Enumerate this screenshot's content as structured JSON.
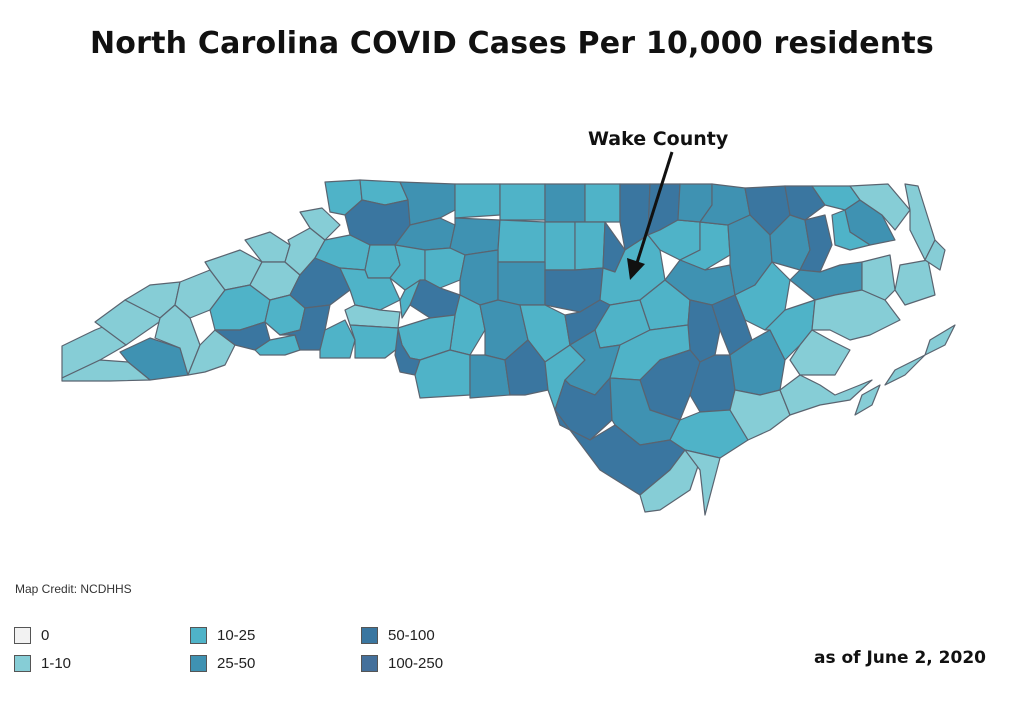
{
  "title": "North Carolina COVID Cases Per 10,000 residents",
  "annotation": "Wake County",
  "credit": "Map Credit: NCDHHS",
  "date_note": "as of June 2, 2020",
  "colors": {
    "c0": "#f2f2f2",
    "c1": "#86cdd6",
    "c2": "#4fb3c8",
    "c3": "#3f92b2",
    "c4": "#3a76a0",
    "c5": "#44709b",
    "outline": "#5a6470"
  },
  "legend": [
    {
      "label": "0",
      "color": "#f2f2f2"
    },
    {
      "label": "1-10",
      "color": "#86cdd6"
    },
    {
      "label": "10-25",
      "color": "#4fb3c8"
    },
    {
      "label": "25-50",
      "color": "#3f92b2"
    },
    {
      "label": "50-100",
      "color": "#3a76a0"
    },
    {
      "label": "100-250",
      "color": "#44709b"
    }
  ]
}
